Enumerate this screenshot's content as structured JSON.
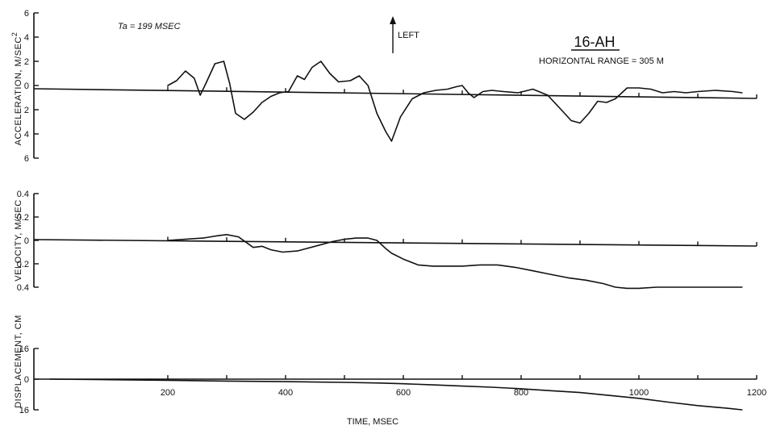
{
  "figure": {
    "annotation_ta": "Ta = 199 MSEC",
    "direction_label": "LEFT",
    "station_id": "16-AH",
    "range_label": "HORIZONTAL  RANGE = 305 M"
  },
  "chart_data": [
    {
      "type": "line",
      "ylabel": "ACCELERATION, M/SEC",
      "ylabel_superscript": "2",
      "yticks": [
        {
          "value": 6,
          "label": "6"
        },
        {
          "value": 4,
          "label": "4"
        },
        {
          "value": 2,
          "label": "2"
        },
        {
          "value": 0,
          "label": "0"
        },
        {
          "value": -2,
          "label": "2"
        },
        {
          "value": -4,
          "label": "4"
        },
        {
          "value": -6,
          "label": "6"
        }
      ],
      "ylim": [
        -6,
        6
      ],
      "xlim": [
        0,
        1200
      ],
      "series": [
        {
          "x": [
            200,
            215,
            230,
            245,
            255,
            265,
            280,
            295,
            305,
            315,
            330,
            345,
            360,
            375,
            390,
            405,
            420,
            432,
            445,
            460,
            475,
            490,
            510,
            525,
            540,
            555,
            570,
            580,
            595,
            615,
            635,
            655,
            675,
            690,
            700,
            710,
            720,
            735,
            750,
            770,
            795,
            820,
            845,
            870,
            885,
            900,
            915,
            930,
            945,
            960,
            980,
            1000,
            1020,
            1040,
            1060,
            1080,
            1100,
            1130,
            1160,
            1175
          ],
          "y": [
            0,
            0.4,
            1.2,
            0.6,
            -0.8,
            0.2,
            1.8,
            2.0,
            0.2,
            -2.3,
            -2.8,
            -2.2,
            -1.4,
            -0.9,
            -0.6,
            -0.5,
            0.8,
            0.5,
            1.5,
            2.0,
            1.0,
            0.3,
            0.4,
            0.8,
            0,
            -2.3,
            -3.8,
            -4.6,
            -2.6,
            -1.1,
            -0.6,
            -0.4,
            -0.3,
            -0.1,
            0,
            -0.6,
            -1.0,
            -0.5,
            -0.4,
            -0.5,
            -0.6,
            -0.3,
            -0.8,
            -2.1,
            -2.9,
            -3.1,
            -2.3,
            -1.3,
            -1.4,
            -1.1,
            -0.2,
            -0.2,
            -0.3,
            -0.6,
            -0.5,
            -0.6,
            -0.5,
            -0.4,
            -0.5,
            -0.6
          ]
        }
      ]
    },
    {
      "type": "line",
      "ylabel": "VELOCITY, M/SEC",
      "yticks": [
        {
          "value": 0.4,
          "label": "0.4"
        },
        {
          "value": 0.2,
          "label": "0.2"
        },
        {
          "value": 0,
          "label": "0"
        },
        {
          "value": -0.2,
          "label": "0.2"
        },
        {
          "value": -0.4,
          "label": "0.4"
        }
      ],
      "ylim": [
        -0.4,
        0.4
      ],
      "xlim": [
        0,
        1200
      ],
      "series": [
        {
          "x": [
            200,
            230,
            260,
            285,
            300,
            320,
            345,
            360,
            375,
            395,
            420,
            450,
            480,
            500,
            520,
            540,
            555,
            570,
            580,
            600,
            625,
            650,
            680,
            700,
            730,
            760,
            790,
            820,
            850,
            880,
            910,
            940,
            960,
            980,
            1000,
            1030,
            1060,
            1100,
            1140,
            1175
          ],
          "y": [
            0,
            0.01,
            0.02,
            0.04,
            0.05,
            0.03,
            -0.06,
            -0.05,
            -0.08,
            -0.1,
            -0.09,
            -0.05,
            -0.01,
            0.01,
            0.02,
            0.02,
            0,
            -0.07,
            -0.11,
            -0.16,
            -0.21,
            -0.22,
            -0.22,
            -0.22,
            -0.21,
            -0.21,
            -0.23,
            -0.26,
            -0.29,
            -0.32,
            -0.34,
            -0.37,
            -0.4,
            -0.41,
            -0.41,
            -0.4,
            -0.4,
            -0.4,
            -0.4,
            -0.4
          ]
        }
      ]
    },
    {
      "type": "line",
      "ylabel": "DISPLACEMENT, CM",
      "xlabel": "TIME, MSEC",
      "yticks": [
        {
          "value": 16,
          "label": "16"
        },
        {
          "value": 0,
          "label": "0"
        },
        {
          "value": -16,
          "label": "16"
        }
      ],
      "ylim": [
        -16,
        16
      ],
      "xticks": [
        {
          "value": 200,
          "label": "200"
        },
        {
          "value": 400,
          "label": "400"
        },
        {
          "value": 600,
          "label": "600"
        },
        {
          "value": 800,
          "label": "800"
        },
        {
          "value": 1000,
          "label": "1000"
        },
        {
          "value": 1200,
          "label": "1200"
        }
      ],
      "xlim": [
        0,
        1200
      ],
      "series": [
        {
          "x": [
            0,
            100,
            200,
            300,
            400,
            500,
            560,
            600,
            650,
            700,
            750,
            800,
            850,
            900,
            950,
            1000,
            1050,
            1100,
            1150,
            1175
          ],
          "y": [
            0,
            -0.3,
            -0.6,
            -1,
            -1.3,
            -1.7,
            -2,
            -2.4,
            -3,
            -3.6,
            -4.2,
            -5,
            -6,
            -7,
            -8.5,
            -10,
            -12,
            -13.8,
            -15.2,
            -16
          ]
        }
      ]
    }
  ]
}
